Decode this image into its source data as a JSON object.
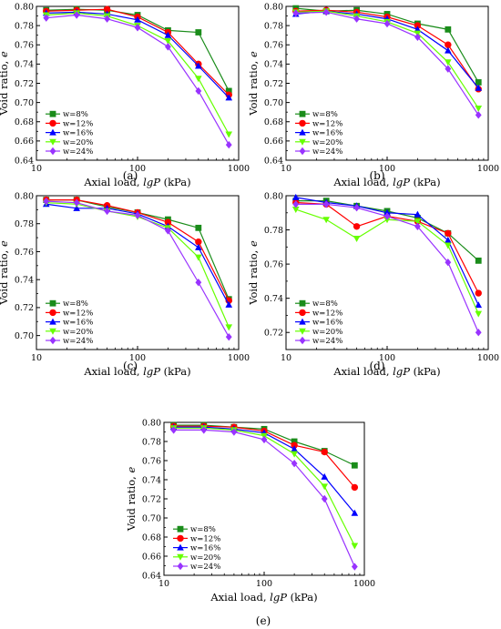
{
  "chart_data": [
    {
      "panel_label": "(a)",
      "type": "line",
      "xscale": "log",
      "xlim": [
        10,
        1000
      ],
      "ylim": [
        0.64,
        0.8
      ],
      "yticks": [
        0.64,
        0.66,
        0.68,
        0.7,
        0.72,
        0.74,
        0.76,
        0.78,
        0.8
      ],
      "xticks": [
        10,
        100,
        1000
      ],
      "xtick_labels": [
        "10",
        "100",
        "1000"
      ],
      "xlabel_prefix": "Axial load, ",
      "xlabel_var": "lgP",
      "xlabel_suffix": " (kPa)",
      "ylabel_prefix": "Void ratio, ",
      "ylabel_var": "e",
      "legend": "lower-left",
      "x": [
        12.5,
        25,
        50,
        100,
        200,
        400,
        800
      ],
      "series": [
        {
          "name": "w=8%",
          "color": "#1a8c1a",
          "marker": "square",
          "values": [
            0.796,
            0.797,
            0.796,
            0.791,
            0.775,
            0.773,
            0.712
          ]
        },
        {
          "name": "w=12%",
          "color": "#ff0000",
          "marker": "circle",
          "values": [
            0.795,
            0.796,
            0.797,
            0.789,
            0.773,
            0.74,
            0.708
          ]
        },
        {
          "name": "w=16%",
          "color": "#0000ff",
          "marker": "triangle",
          "values": [
            0.793,
            0.794,
            0.792,
            0.786,
            0.77,
            0.738,
            0.705
          ]
        },
        {
          "name": "w=20%",
          "color": "#66ff00",
          "marker": "triangle-down",
          "values": [
            0.791,
            0.793,
            0.79,
            0.78,
            0.764,
            0.725,
            0.667
          ]
        },
        {
          "name": "w=24%",
          "color": "#9933ff",
          "marker": "diamond",
          "values": [
            0.788,
            0.791,
            0.787,
            0.778,
            0.758,
            0.712,
            0.656
          ]
        }
      ]
    },
    {
      "panel_label": "(b)",
      "type": "line",
      "xscale": "log",
      "xlim": [
        10,
        1000
      ],
      "ylim": [
        0.64,
        0.8
      ],
      "yticks": [
        0.64,
        0.66,
        0.68,
        0.7,
        0.72,
        0.74,
        0.76,
        0.78,
        0.8
      ],
      "xticks": [
        10,
        100,
        1000
      ],
      "xtick_labels": [
        "10",
        "100",
        "1000"
      ],
      "xlabel_prefix": "Axial load, ",
      "xlabel_var": "lgP",
      "xlabel_suffix": " (kPa)",
      "ylabel_prefix": "Void ratio, ",
      "ylabel_var": "e",
      "legend": "lower-left",
      "x": [
        12.5,
        25,
        50,
        100,
        200,
        400,
        800
      ],
      "series": [
        {
          "name": "w=8%",
          "color": "#1a8c1a",
          "marker": "square",
          "values": [
            0.798,
            0.795,
            0.796,
            0.792,
            0.782,
            0.776,
            0.721
          ]
        },
        {
          "name": "w=12%",
          "color": "#ff0000",
          "marker": "circle",
          "values": [
            0.795,
            0.796,
            0.794,
            0.789,
            0.78,
            0.76,
            0.714
          ]
        },
        {
          "name": "w=16%",
          "color": "#0000ff",
          "marker": "triangle",
          "values": [
            0.792,
            0.795,
            0.792,
            0.787,
            0.776,
            0.754,
            0.715
          ]
        },
        {
          "name": "w=20%",
          "color": "#66ff00",
          "marker": "triangle-down",
          "values": [
            0.794,
            0.795,
            0.79,
            0.784,
            0.772,
            0.742,
            0.694
          ]
        },
        {
          "name": "w=24%",
          "color": "#9933ff",
          "marker": "diamond",
          "values": [
            0.793,
            0.794,
            0.787,
            0.782,
            0.768,
            0.735,
            0.687
          ]
        }
      ]
    },
    {
      "panel_label": "(c)",
      "type": "line",
      "xscale": "log",
      "xlim": [
        10,
        1000
      ],
      "ylim": [
        0.69,
        0.8
      ],
      "yticks": [
        0.7,
        0.72,
        0.74,
        0.76,
        0.78,
        0.8
      ],
      "xticks": [
        10,
        100,
        1000
      ],
      "xtick_labels": [
        "10",
        "100",
        "1000"
      ],
      "xlabel_prefix": "Axial load, ",
      "xlabel_var": "lgP",
      "xlabel_suffix": " (kPa)",
      "ylabel_prefix": "Void ratio, ",
      "ylabel_var": "e",
      "legend": "lower-left",
      "x": [
        12.5,
        25,
        50,
        100,
        200,
        400,
        800
      ],
      "series": [
        {
          "name": "w=8%",
          "color": "#1a8c1a",
          "marker": "square",
          "values": [
            0.797,
            0.797,
            0.792,
            0.788,
            0.783,
            0.777,
            0.726
          ]
        },
        {
          "name": "w=12%",
          "color": "#ff0000",
          "marker": "circle",
          "values": [
            0.797,
            0.797,
            0.793,
            0.788,
            0.781,
            0.767,
            0.725
          ]
        },
        {
          "name": "w=16%",
          "color": "#0000ff",
          "marker": "triangle",
          "values": [
            0.794,
            0.791,
            0.791,
            0.787,
            0.778,
            0.763,
            0.722
          ]
        },
        {
          "name": "w=20%",
          "color": "#66ff00",
          "marker": "triangle-down",
          "values": [
            0.795,
            0.794,
            0.789,
            0.785,
            0.777,
            0.756,
            0.706
          ]
        },
        {
          "name": "w=24%",
          "color": "#9933ff",
          "marker": "diamond",
          "values": [
            0.796,
            0.795,
            0.789,
            0.786,
            0.775,
            0.738,
            0.699
          ]
        }
      ]
    },
    {
      "panel_label": "(d)",
      "type": "line",
      "xscale": "log",
      "xlim": [
        10,
        1000
      ],
      "ylim": [
        0.71,
        0.8
      ],
      "yticks": [
        0.72,
        0.74,
        0.76,
        0.78,
        0.8
      ],
      "xticks": [
        10,
        100,
        1000
      ],
      "xtick_labels": [
        "10",
        "100",
        "1000"
      ],
      "xlabel_prefix": "Axial load, ",
      "xlabel_var": "lgP",
      "xlabel_suffix": " (kPa)",
      "ylabel_prefix": "Void ratio, ",
      "ylabel_var": "e",
      "legend": "lower-left",
      "x": [
        12.5,
        25,
        50,
        100,
        200,
        400,
        800
      ],
      "series": [
        {
          "name": "w=8%",
          "color": "#1a8c1a",
          "marker": "square",
          "values": [
            0.797,
            0.797,
            0.794,
            0.791,
            0.787,
            0.778,
            0.762
          ]
        },
        {
          "name": "w=12%",
          "color": "#ff0000",
          "marker": "circle",
          "values": [
            0.796,
            0.795,
            0.782,
            0.788,
            0.785,
            0.778,
            0.743
          ]
        },
        {
          "name": "w=16%",
          "color": "#0000ff",
          "marker": "triangle",
          "values": [
            0.799,
            0.796,
            0.794,
            0.79,
            0.789,
            0.774,
            0.736
          ]
        },
        {
          "name": "w=20%",
          "color": "#66ff00",
          "marker": "triangle-down",
          "values": [
            0.792,
            0.786,
            0.775,
            0.786,
            0.785,
            0.771,
            0.731
          ]
        },
        {
          "name": "w=24%",
          "color": "#9933ff",
          "marker": "diamond",
          "values": [
            0.795,
            0.795,
            0.793,
            0.788,
            0.782,
            0.761,
            0.72
          ]
        }
      ]
    },
    {
      "panel_label": "(e)",
      "type": "line",
      "xscale": "log",
      "xlim": [
        10,
        1000
      ],
      "ylim": [
        0.64,
        0.8
      ],
      "yticks": [
        0.64,
        0.66,
        0.68,
        0.7,
        0.72,
        0.74,
        0.76,
        0.78,
        0.8
      ],
      "xticks": [
        10,
        100,
        1000
      ],
      "xtick_labels": [
        "10",
        "100",
        "1000"
      ],
      "xlabel_prefix": "Axial load, ",
      "xlabel_var": "lgP",
      "xlabel_suffix": " (kPa)",
      "ylabel_prefix": "Void ratio, ",
      "ylabel_var": "e",
      "legend": "lower-left",
      "x": [
        12.5,
        25,
        50,
        100,
        200,
        400,
        800
      ],
      "series": [
        {
          "name": "w=8%",
          "color": "#1a8c1a",
          "marker": "square",
          "values": [
            0.797,
            0.797,
            0.795,
            0.793,
            0.78,
            0.77,
            0.755
          ]
        },
        {
          "name": "w=12%",
          "color": "#ff0000",
          "marker": "circle",
          "values": [
            0.796,
            0.796,
            0.795,
            0.791,
            0.776,
            0.769,
            0.732
          ]
        },
        {
          "name": "w=16%",
          "color": "#0000ff",
          "marker": "triangle",
          "values": [
            0.795,
            0.795,
            0.793,
            0.789,
            0.772,
            0.743,
            0.705
          ]
        },
        {
          "name": "w=20%",
          "color": "#66ff00",
          "marker": "triangle-down",
          "values": [
            0.794,
            0.794,
            0.792,
            0.786,
            0.767,
            0.733,
            0.671
          ]
        },
        {
          "name": "w=24%",
          "color": "#9933ff",
          "marker": "diamond",
          "values": [
            0.792,
            0.792,
            0.79,
            0.782,
            0.757,
            0.72,
            0.649
          ]
        }
      ]
    }
  ]
}
